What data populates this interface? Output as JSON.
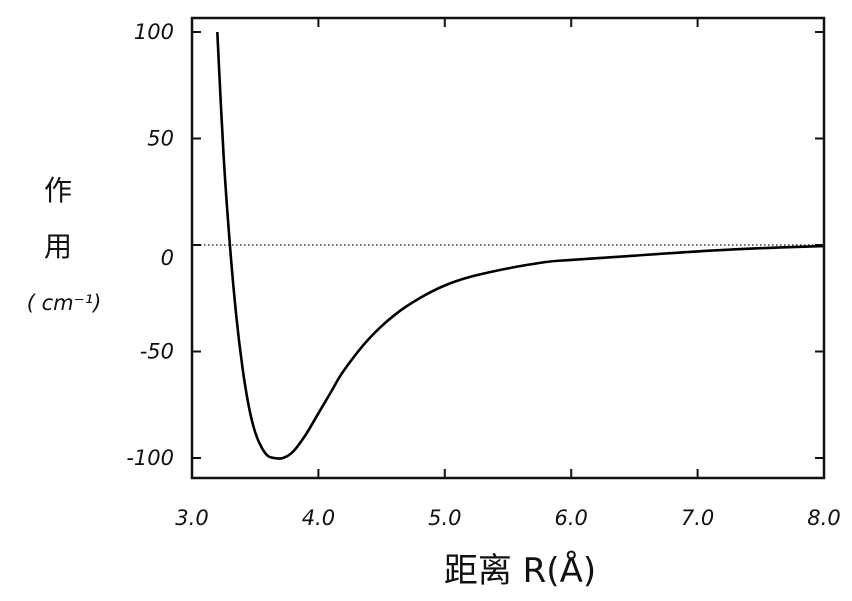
{
  "chart_data": {
    "type": "line",
    "xlabel": "距离 R(Å)",
    "ylabel_lines": [
      "作",
      "用",
      "( cm⁻¹)"
    ],
    "xlim": [
      3.0,
      8.0
    ],
    "ylim": [
      -100,
      100
    ],
    "x_ticks": [
      "3.0",
      "4.0",
      "5.0",
      "6.0",
      "7.0",
      "8.0"
    ],
    "y_ticks": [
      "100",
      "50",
      "0",
      "-50",
      "-100"
    ],
    "reference_line": {
      "y": 0,
      "style": "dotted"
    },
    "grid": false,
    "series": [
      {
        "x": [
          3.2,
          3.25,
          3.3,
          3.35,
          3.4,
          3.45,
          3.5,
          3.55,
          3.6,
          3.65,
          3.72,
          3.8,
          3.9,
          4.0,
          4.1,
          4.2,
          4.4,
          4.6,
          4.8,
          5.0,
          5.2,
          5.5,
          5.8,
          6.0,
          6.5,
          7.0,
          7.5,
          8.0
        ],
        "y": [
          100,
          42,
          0,
          -33,
          -58,
          -76,
          -88,
          -95,
          -99,
          -100,
          -100,
          -97,
          -89,
          -79,
          -69,
          -59,
          -44,
          -33,
          -25,
          -19,
          -15,
          -11,
          -8,
          -7,
          -5,
          -3,
          -1.5,
          -0.5
        ]
      }
    ]
  }
}
